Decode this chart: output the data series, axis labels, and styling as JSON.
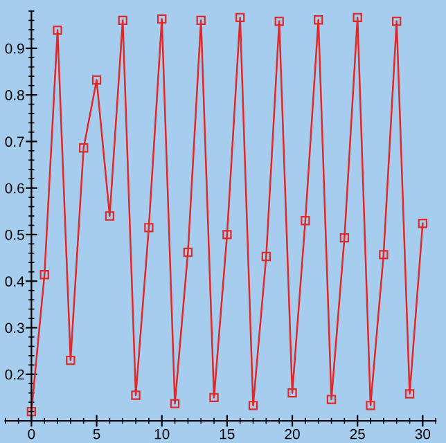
{
  "chart_data": {
    "type": "line",
    "x": [
      0,
      1,
      2,
      3,
      4,
      5,
      6,
      7,
      8,
      9,
      10,
      11,
      12,
      13,
      14,
      15,
      16,
      17,
      18,
      19,
      20,
      21,
      22,
      23,
      24,
      25,
      26,
      27,
      28,
      29,
      30
    ],
    "series": [
      {
        "color": "#e02828",
        "values": [
          0.12,
          0.414,
          0.939,
          0.23,
          0.686,
          0.832,
          0.54,
          0.96,
          0.155,
          0.515,
          0.963,
          0.137,
          0.462,
          0.96,
          0.15,
          0.5,
          0.966,
          0.133,
          0.453,
          0.958,
          0.16,
          0.53,
          0.961,
          0.146,
          0.493,
          0.966,
          0.133,
          0.457,
          0.958,
          0.158,
          0.524
        ]
      }
    ],
    "xlim": [
      -2,
      31
    ],
    "xticks": [
      0,
      5,
      10,
      15,
      20,
      25,
      30
    ],
    "ylim": [
      0.1,
      0.98
    ],
    "yticks": [
      0.2,
      0.3,
      0.4,
      0.5,
      0.6,
      0.7,
      0.8,
      0.9
    ],
    "marker": "square",
    "line_style": "solid",
    "legend": false
  }
}
